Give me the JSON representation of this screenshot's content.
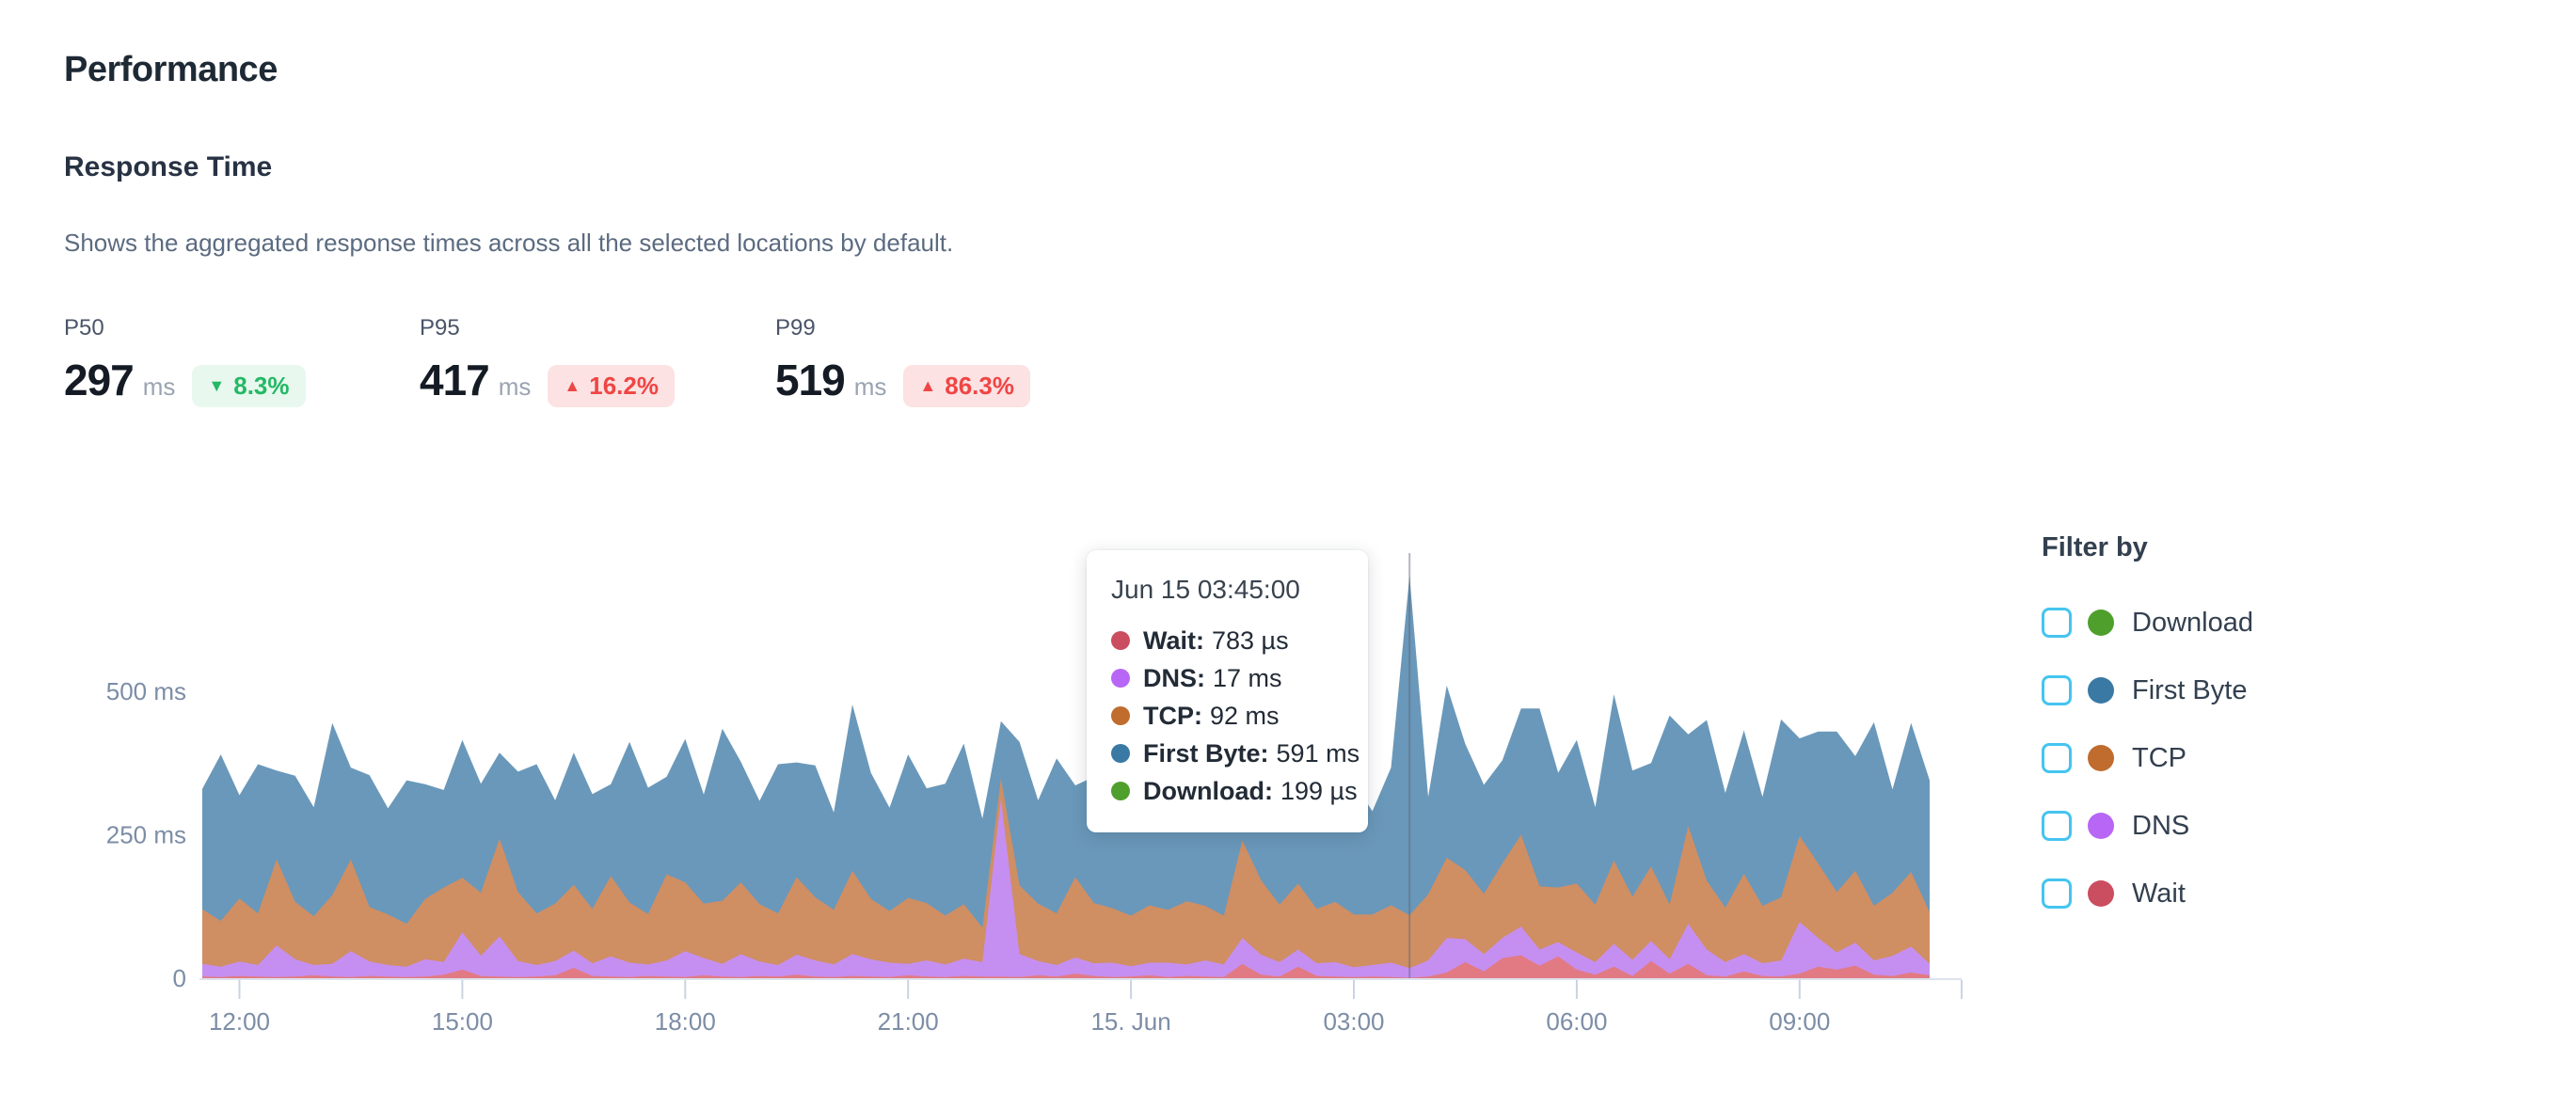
{
  "page": {
    "title": "Performance"
  },
  "section": {
    "title": "Response Time",
    "subtitle": "Shows the aggregated response times across all the selected locations by default."
  },
  "metrics": [
    {
      "label": "P50",
      "value": "297",
      "unit": "ms",
      "arrow": "▼",
      "delta": "8.3%",
      "trend": "down",
      "badge_bg": "#E8F8EE",
      "badge_color": "#25B865"
    },
    {
      "label": "P95",
      "value": "417",
      "unit": "ms",
      "arrow": "▲",
      "delta": "16.2%",
      "trend": "up",
      "badge_bg": "#FCE2E2",
      "badge_color": "#EF4545"
    },
    {
      "label": "P99",
      "value": "519",
      "unit": "ms",
      "arrow": "▲",
      "delta": "86.3%",
      "trend": "up",
      "badge_bg": "#FCE2E2",
      "badge_color": "#EF4545"
    }
  ],
  "tooltip": {
    "date": "Jun 15 03:45:00",
    "rows": [
      {
        "label": "Wait:",
        "value": "783 µs",
        "color": "#CB4D60"
      },
      {
        "label": "DNS:",
        "value": "17 ms",
        "color": "#B766F5"
      },
      {
        "label": "TCP:",
        "value": "92 ms",
        "color": "#BF6C2E"
      },
      {
        "label": "First Byte:",
        "value": "591 ms",
        "color": "#3979A4"
      },
      {
        "label": "Download:",
        "value": "199 µs",
        "color": "#4F9F2D"
      }
    ]
  },
  "filter": {
    "title": "Filter by",
    "items": [
      {
        "label": "Download",
        "color": "#4F9F2D",
        "checked": false
      },
      {
        "label": "First Byte",
        "color": "#3979A4",
        "checked": false
      },
      {
        "label": "TCP",
        "color": "#BF6C2E",
        "checked": false
      },
      {
        "label": "DNS",
        "color": "#B766F5",
        "checked": false
      },
      {
        "label": "Wait",
        "color": "#CB4D60",
        "checked": false
      }
    ]
  },
  "chart_data": {
    "type": "area",
    "stacked": true,
    "unit": "ms",
    "ylim": [
      0,
      740
    ],
    "grid": false,
    "y_ticks": [
      {
        "value": 0,
        "label": "0"
      },
      {
        "value": 250,
        "label": "250 ms"
      },
      {
        "value": 500,
        "label": "500 ms"
      }
    ],
    "x_ticks": [
      {
        "index": 2,
        "label": "12:00"
      },
      {
        "index": 14,
        "label": "15:00"
      },
      {
        "index": 26,
        "label": "18:00"
      },
      {
        "index": 38,
        "label": "21:00"
      },
      {
        "index": 50,
        "label": "15. Jun"
      },
      {
        "index": 62,
        "label": "03:00"
      },
      {
        "index": 74,
        "label": "06:00"
      },
      {
        "index": 86,
        "label": "09:00"
      }
    ],
    "hover": {
      "index": 65,
      "label": "Jun 15 03:45:00"
    },
    "series": [
      {
        "name": "Wait",
        "dot_color": "#CB4D60",
        "area_color": "#E27A84",
        "values": [
          3,
          2,
          4,
          3,
          2,
          3,
          5,
          3,
          2,
          4,
          3,
          2,
          3,
          6,
          15,
          4,
          3,
          2,
          3,
          5,
          18,
          4,
          3,
          2,
          4,
          3,
          2,
          5,
          3,
          2,
          4,
          3,
          6,
          3,
          2,
          4,
          3,
          2,
          5,
          3,
          2,
          4,
          3,
          3,
          2,
          5,
          3,
          8,
          4,
          2,
          3,
          5,
          2,
          4,
          3,
          2,
          25,
          6,
          3,
          20,
          4,
          3,
          2,
          3,
          2,
          0.783,
          3,
          10,
          28,
          12,
          35,
          40,
          22,
          38,
          15,
          6,
          20,
          4,
          30,
          8,
          25,
          5,
          3,
          12,
          4,
          3,
          8,
          20,
          15,
          22,
          6,
          4,
          10,
          5
        ]
      },
      {
        "name": "DNS",
        "dot_color": "#B766F5",
        "area_color": "#C58FF1",
        "values": [
          22,
          18,
          25,
          20,
          55,
          30,
          18,
          22,
          45,
          25,
          20,
          18,
          30,
          22,
          65,
          35,
          70,
          28,
          20,
          25,
          30,
          22,
          35,
          25,
          20,
          28,
          45,
          30,
          22,
          40,
          25,
          20,
          35,
          28,
          22,
          38,
          30,
          25,
          20,
          28,
          22,
          30,
          25,
          310,
          40,
          25,
          20,
          28,
          22,
          25,
          18,
          22,
          25,
          20,
          28,
          22,
          45,
          35,
          25,
          30,
          22,
          25,
          17,
          20,
          25,
          17,
          28,
          60,
          40,
          30,
          35,
          50,
          28,
          25,
          30,
          22,
          40,
          28,
          35,
          25,
          70,
          45,
          25,
          30,
          22,
          28,
          90,
          50,
          30,
          40,
          25,
          35,
          45,
          20
        ]
      },
      {
        "name": "TCP",
        "dot_color": "#BF6C2E",
        "area_color": "#D08E63",
        "values": [
          95,
          80,
          110,
          90,
          150,
          100,
          85,
          120,
          160,
          95,
          88,
          75,
          105,
          130,
          95,
          110,
          170,
          120,
          90,
          100,
          115,
          95,
          140,
          105,
          88,
          150,
          120,
          95,
          110,
          125,
          100,
          90,
          135,
          110,
          95,
          145,
          105,
          90,
          115,
          100,
          85,
          95,
          60,
          35,
          120,
          100,
          90,
          140,
          105,
          95,
          88,
          100,
          92,
          110,
          95,
          85,
          170,
          130,
          100,
          115,
          95,
          105,
          92,
          88,
          100,
          92,
          115,
          140,
          120,
          105,
          130,
          160,
          110,
          95,
          120,
          100,
          145,
          110,
          130,
          95,
          170,
          120,
          95,
          140,
          100,
          110,
          150,
          130,
          105,
          125,
          95,
          110,
          130,
          90
        ]
      },
      {
        "name": "First Byte",
        "dot_color": "#3979A4",
        "area_color": "#6A98BA",
        "values": [
          210,
          290,
          180,
          260,
          155,
          220,
          190,
          300,
          160,
          230,
          185,
          250,
          200,
          170,
          240,
          190,
          150,
          210,
          260,
          180,
          230,
          200,
          160,
          280,
          220,
          170,
          250,
          190,
          300,
          210,
          180,
          260,
          200,
          230,
          170,
          290,
          220,
          180,
          250,
          200,
          230,
          280,
          190,
          100,
          250,
          180,
          270,
          160,
          220,
          250,
          190,
          230,
          170,
          260,
          200,
          290,
          160,
          210,
          250,
          180,
          270,
          200,
          230,
          180,
          240,
          591,
          170,
          300,
          220,
          190,
          180,
          220,
          310,
          200,
          250,
          170,
          290,
          220,
          180,
          330,
          160,
          280,
          200,
          250,
          190,
          310,
          170,
          230,
          280,
          200,
          320,
          180,
          260,
          230
        ]
      }
    ]
  }
}
